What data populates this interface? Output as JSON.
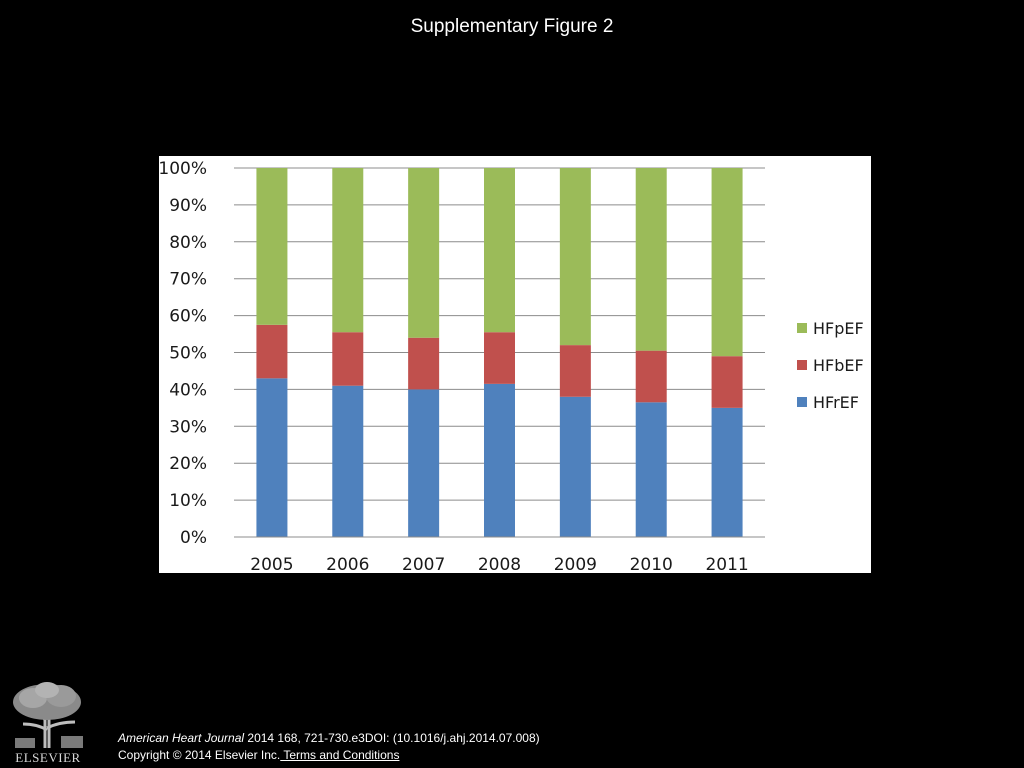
{
  "slide": {
    "title": "Supplementary Figure 2"
  },
  "chart_data": {
    "type": "bar",
    "stacked": true,
    "categories": [
      "2005",
      "2006",
      "2007",
      "2008",
      "2009",
      "2010",
      "2011"
    ],
    "series": [
      {
        "name": "HFrEF",
        "color": "#4f81bd",
        "values": [
          43,
          41,
          40,
          41.5,
          38,
          36.5,
          35
        ]
      },
      {
        "name": "HFbEF",
        "color": "#c0504d",
        "values": [
          14.5,
          14.5,
          14,
          14,
          14,
          14,
          14
        ]
      },
      {
        "name": "HFpEF",
        "color": "#9bbb59",
        "values": [
          42.5,
          44.5,
          46,
          44.5,
          48,
          49.5,
          51
        ]
      }
    ],
    "y_ticks": [
      "0%",
      "10%",
      "20%",
      "30%",
      "40%",
      "50%",
      "60%",
      "70%",
      "80%",
      "90%",
      "100%"
    ],
    "ylim": [
      0,
      100
    ],
    "grid": true,
    "legend_position": "right",
    "legend_order": [
      "HFpEF",
      "HFbEF",
      "HFrEF"
    ]
  },
  "footer": {
    "journal": "American Heart Journal",
    "citation_rest": " 2014 168, 721-730.e3DOI: (10.1016/j.ahj.2014.07.008)",
    "copyright": "Copyright © 2014 Elsevier Inc.",
    "terms_link": " Terms and Conditions",
    "logo_text": "ELSEVIER"
  }
}
